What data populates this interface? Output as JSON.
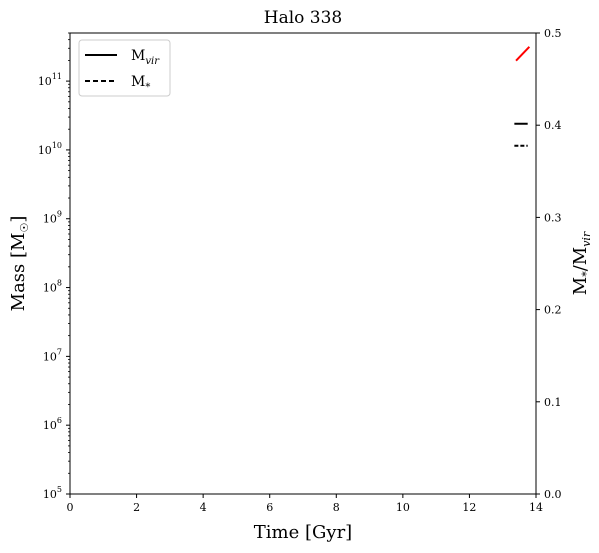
{
  "chart_data": {
    "type": "line",
    "title": "Halo 338",
    "xlabel": "Time [Gyr]",
    "ylabel_left": "Mass [M",
    "ylabel_left_symbol": "☉",
    "ylabel_left_close": "]",
    "ylabel_right": "M*/Mvir",
    "xlim": [
      0,
      14
    ],
    "ylim_left": [
      100000,
      500000000000
    ],
    "ylim_right": [
      0.0,
      0.5
    ],
    "yscale_left": "log",
    "yscale_right": "linear",
    "x_ticks": [
      "0",
      "2",
      "4",
      "6",
      "8",
      "10",
      "12",
      "14"
    ],
    "y_left_ticks": [
      {
        "base": "10",
        "exp": "5"
      },
      {
        "base": "10",
        "exp": "6"
      },
      {
        "base": "10",
        "exp": "7"
      },
      {
        "base": "10",
        "exp": "8"
      },
      {
        "base": "10",
        "exp": "9"
      },
      {
        "base": "10",
        "exp": "10"
      },
      {
        "base": "10",
        "exp": "11"
      }
    ],
    "y_right_ticks": [
      "0.0",
      "0.1",
      "0.2",
      "0.3",
      "0.4",
      "0.5"
    ],
    "series": [
      {
        "name": "Mvir",
        "axis": "left",
        "style": "solid",
        "color": "#000000",
        "x": [
          13.35,
          13.75
        ],
        "y": [
          24000000000,
          24000000000
        ]
      },
      {
        "name": "M*",
        "axis": "left",
        "style": "dashed",
        "color": "#000000",
        "x": [
          13.35,
          13.75
        ],
        "y": [
          11500000000,
          11500000000
        ]
      },
      {
        "name": "",
        "axis": "right",
        "style": "solid",
        "color": "#ff0000",
        "x": [
          13.4,
          13.8
        ],
        "y": [
          0.47,
          0.485
        ]
      }
    ],
    "legend": {
      "placement": "top-left",
      "entries": [
        {
          "style": "solid",
          "main": "M",
          "sub": "vir"
        },
        {
          "style": "dashed",
          "main": "M",
          "sub": "*"
        }
      ]
    },
    "ratio_color": "#ff0000",
    "grid": false
  }
}
